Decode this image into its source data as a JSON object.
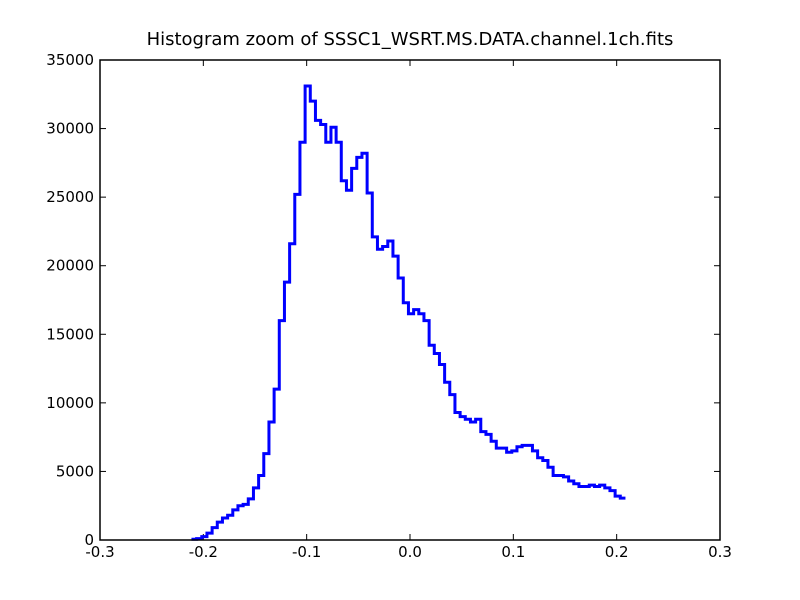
{
  "chart_data": {
    "type": "line",
    "title": "Histogram zoom of SSSC1_WSRT.MS.DATA.channel.1ch.fits",
    "xlabel": "",
    "ylabel": "",
    "xlim": [
      -0.3,
      0.3
    ],
    "ylim": [
      0,
      35000
    ],
    "x_ticks": [
      "-0.3",
      "-0.2",
      "-0.1",
      "0.0",
      "0.1",
      "0.2",
      "0.3"
    ],
    "y_ticks": [
      "0",
      "5000",
      "10000",
      "15000",
      "20000",
      "25000",
      "30000",
      "35000"
    ],
    "grid": false,
    "step": true,
    "color": "#0000ff",
    "series": [
      {
        "x": [
          -0.209,
          -0.204,
          -0.199,
          -0.194,
          -0.189,
          -0.184,
          -0.179,
          -0.174,
          -0.169,
          -0.164,
          -0.159,
          -0.154,
          -0.149,
          -0.144,
          -0.139,
          -0.134,
          -0.129,
          -0.124,
          -0.119,
          -0.114,
          -0.109,
          -0.104,
          -0.099,
          -0.094,
          -0.089,
          -0.084,
          -0.079,
          -0.074,
          -0.069,
          -0.064,
          -0.059,
          -0.054,
          -0.049,
          -0.044,
          -0.039,
          -0.034,
          -0.029,
          -0.024,
          -0.019,
          -0.014,
          -0.009,
          -0.004,
          0.001,
          0.006,
          0.011,
          0.016,
          0.021,
          0.026,
          0.031,
          0.036,
          0.041,
          0.046,
          0.051,
          0.056,
          0.061,
          0.066,
          0.071,
          0.076,
          0.081,
          0.086,
          0.091,
          0.096,
          0.101,
          0.106,
          0.111,
          0.116,
          0.121,
          0.126,
          0.131,
          0.136,
          0.141,
          0.146,
          0.151,
          0.156,
          0.161,
          0.166,
          0.171,
          0.176,
          0.181,
          0.186,
          0.191,
          0.196,
          0.201,
          0.206
        ],
        "y": [
          50,
          100,
          250,
          500,
          900,
          1300,
          1600,
          1800,
          2200,
          2500,
          2600,
          3000,
          3800,
          4700,
          6300,
          8600,
          11000,
          16000,
          18800,
          21600,
          25200,
          29000,
          33100,
          32000,
          30600,
          30300,
          29000,
          30100,
          29000,
          26200,
          25500,
          27100,
          27900,
          28200,
          25300,
          22100,
          21200,
          21400,
          21800,
          20700,
          19100,
          17300,
          16500,
          16800,
          16500,
          16000,
          14200,
          13600,
          12800,
          11500,
          10600,
          9300,
          9000,
          8800,
          8600,
          8800,
          7900,
          7700,
          7200,
          6700,
          6700,
          6400,
          6500,
          6800,
          6900,
          6900,
          6500,
          6000,
          5800,
          5300,
          4700,
          4700,
          4600,
          4300,
          4100,
          3900,
          3900,
          4000,
          3900,
          4000,
          3800,
          3600,
          3200,
          3050
        ]
      }
    ]
  }
}
